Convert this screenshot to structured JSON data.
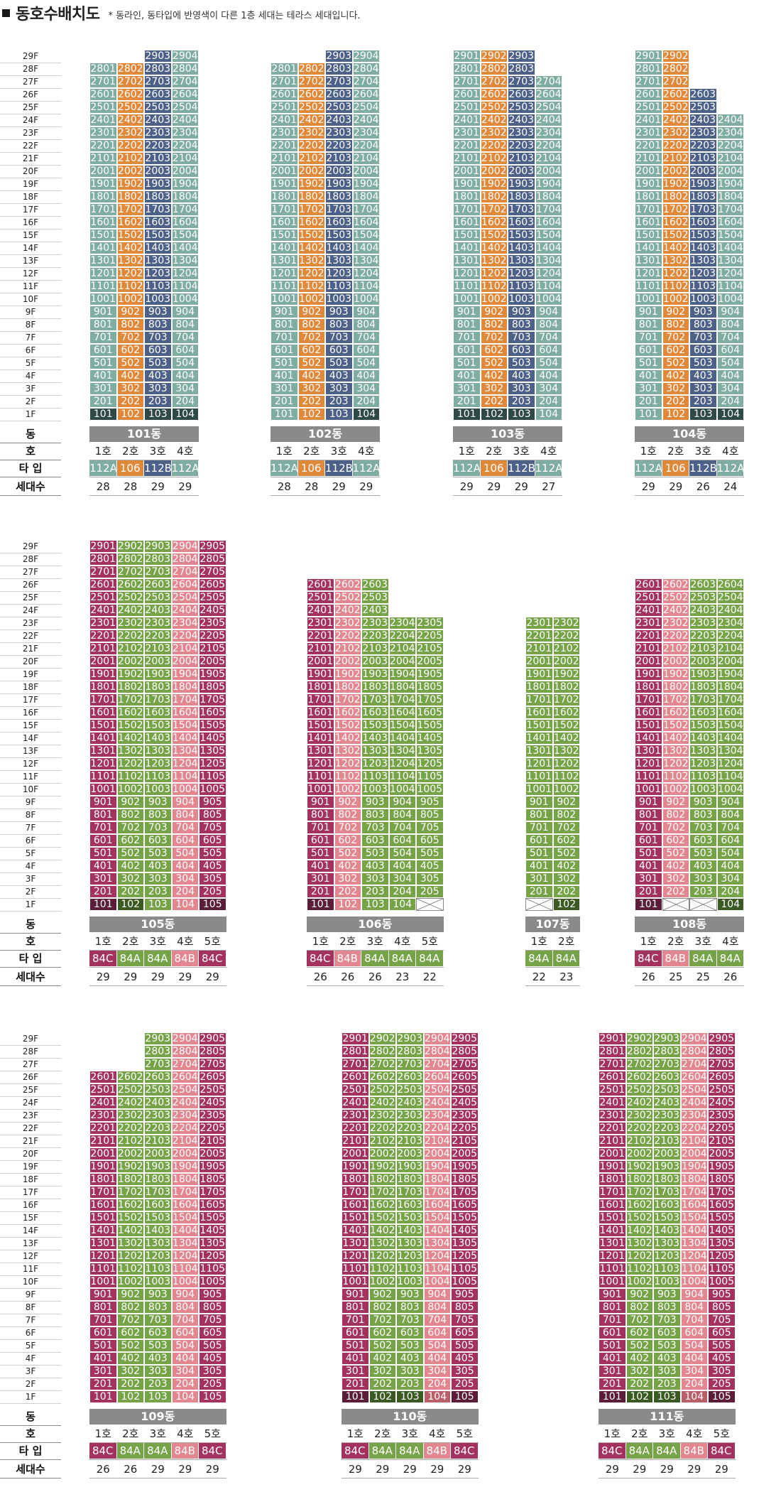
{
  "title": "동호수배치도",
  "note": "* 동라인, 동타입에 반영색이 다른 1층 세대는 테라스 세대입니다.",
  "labels": {
    "dong": "동",
    "ho": "호",
    "type": "타 입",
    "count": "세대수"
  },
  "colors": {
    "112A": "#7fada2",
    "106": "#e0893a",
    "112B": "#4d6088",
    "dark1": "#2f4a46",
    "84C": "#a3325f",
    "84A": "#76a348",
    "84B": "#e2868f",
    "84Cdark": "#5c1d3b",
    "84Adark": "#3b5a22",
    "84Bdark": "#b85f68",
    "cross": "#ffffff"
  },
  "sections": [
    {
      "floors_top": 29,
      "buildings": [
        {
          "name": "101동",
          "lines": [
            {
              "ho": "1호",
              "type": "112A",
              "count": "28",
              "top": 28
            },
            {
              "ho": "2호",
              "type": "106",
              "count": "28",
              "top": 28
            },
            {
              "ho": "3호",
              "type": "112B",
              "count": "29",
              "top": 29
            },
            {
              "ho": "4호",
              "type": "112A",
              "count": "29",
              "top": 29
            }
          ],
          "first_floor_dark": [
            true,
            false,
            true,
            true
          ]
        },
        {
          "name": "102동",
          "lines": [
            {
              "ho": "1호",
              "type": "112A",
              "count": "28",
              "top": 28
            },
            {
              "ho": "2호",
              "type": "106",
              "count": "28",
              "top": 28
            },
            {
              "ho": "3호",
              "type": "112B",
              "count": "29",
              "top": 29
            },
            {
              "ho": "4호",
              "type": "112A",
              "count": "29",
              "top": 29
            }
          ],
          "first_floor_dark": [
            false,
            false,
            false,
            true
          ]
        },
        {
          "name": "103동",
          "lines": [
            {
              "ho": "1호",
              "type": "112A",
              "count": "29",
              "top": 29
            },
            {
              "ho": "2호",
              "type": "106",
              "count": "29",
              "top": 29
            },
            {
              "ho": "3호",
              "type": "112B",
              "count": "29",
              "top": 29
            },
            {
              "ho": "4호",
              "type": "112A",
              "count": "27",
              "top": 27
            }
          ],
          "first_floor_dark": [
            true,
            true,
            true,
            false
          ]
        },
        {
          "name": "104동",
          "lines": [
            {
              "ho": "1호",
              "type": "112A",
              "count": "29",
              "top": 29
            },
            {
              "ho": "2호",
              "type": "106",
              "count": "29",
              "top": 29
            },
            {
              "ho": "3호",
              "type": "112B",
              "count": "26",
              "top": 26
            },
            {
              "ho": "4호",
              "type": "112A",
              "count": "24",
              "top": 24
            }
          ],
          "first_floor_dark": [
            false,
            false,
            true,
            true
          ]
        }
      ]
    },
    {
      "floors_top": 29,
      "buildings": [
        {
          "name": "105동",
          "lines": [
            {
              "ho": "1호",
              "type": "84C",
              "count": "29",
              "top": 29
            },
            {
              "ho": "2호",
              "type": "84A",
              "count": "29",
              "top": 29
            },
            {
              "ho": "3호",
              "type": "84A",
              "count": "29",
              "top": 29
            },
            {
              "ho": "4호",
              "type": "84B",
              "count": "29",
              "top": 29
            },
            {
              "ho": "5호",
              "type": "84C",
              "count": "29",
              "top": 29
            }
          ],
          "first_floor_dark": [
            true,
            true,
            false,
            false,
            true
          ]
        },
        {
          "name": "106동",
          "lines": [
            {
              "ho": "1호",
              "type": "84C",
              "count": "26",
              "top": 26
            },
            {
              "ho": "2호",
              "type": "84B",
              "count": "26",
              "top": 26
            },
            {
              "ho": "3호",
              "type": "84A",
              "count": "26",
              "top": 26
            },
            {
              "ho": "4호",
              "type": "84A",
              "count": "23",
              "top": 23
            },
            {
              "ho": "5호",
              "type": "84A",
              "count": "22",
              "top": 23,
              "first_cross": true
            }
          ],
          "first_floor_dark": [
            true,
            false,
            false,
            false,
            false
          ]
        },
        {
          "name": "107동",
          "lines": [
            {
              "ho": "1호",
              "type": "84A",
              "count": "22",
              "top": 23,
              "first_cross": true
            },
            {
              "ho": "2호",
              "type": "84A",
              "count": "23",
              "top": 23
            }
          ],
          "first_floor_dark": [
            false,
            true
          ]
        },
        {
          "name": "108동",
          "lines": [
            {
              "ho": "1호",
              "type": "84C",
              "count": "26",
              "top": 26
            },
            {
              "ho": "2호",
              "type": "84B",
              "count": "25",
              "top": 26,
              "first_cross": true
            },
            {
              "ho": "3호",
              "type": "84A",
              "count": "25",
              "top": 26,
              "first_cross": true
            },
            {
              "ho": "4호",
              "type": "84A",
              "count": "26",
              "top": 26
            }
          ],
          "first_floor_dark": [
            true,
            false,
            false,
            true
          ]
        }
      ]
    },
    {
      "floors_top": 29,
      "buildings": [
        {
          "name": "109동",
          "lines": [
            {
              "ho": "1호",
              "type": "84C",
              "count": "26",
              "top": 26
            },
            {
              "ho": "2호",
              "type": "84A",
              "count": "26",
              "top": 26
            },
            {
              "ho": "3호",
              "type": "84A",
              "count": "29",
              "top": 29
            },
            {
              "ho": "4호",
              "type": "84B",
              "count": "29",
              "top": 29
            },
            {
              "ho": "5호",
              "type": "84C",
              "count": "29",
              "top": 29
            }
          ],
          "first_floor_dark": [
            false,
            false,
            false,
            false,
            false
          ]
        },
        {
          "name": "110동",
          "lines": [
            {
              "ho": "1호",
              "type": "84C",
              "count": "29",
              "top": 29
            },
            {
              "ho": "2호",
              "type": "84A",
              "count": "29",
              "top": 29
            },
            {
              "ho": "3호",
              "type": "84A",
              "count": "29",
              "top": 29
            },
            {
              "ho": "4호",
              "type": "84B",
              "count": "29",
              "top": 29
            },
            {
              "ho": "5호",
              "type": "84C",
              "count": "29",
              "top": 29
            }
          ],
          "first_floor_dark": [
            true,
            true,
            true,
            true,
            true
          ]
        },
        {
          "name": "111동",
          "lines": [
            {
              "ho": "1호",
              "type": "84C",
              "count": "29",
              "top": 29
            },
            {
              "ho": "2호",
              "type": "84A",
              "count": "29",
              "top": 29
            },
            {
              "ho": "3호",
              "type": "84A",
              "count": "29",
              "top": 29
            },
            {
              "ho": "4호",
              "type": "84B",
              "count": "29",
              "top": 29
            },
            {
              "ho": "5호",
              "type": "84C",
              "count": "29",
              "top": 29
            }
          ],
          "first_floor_dark": [
            true,
            true,
            true,
            true,
            true
          ]
        }
      ]
    }
  ]
}
